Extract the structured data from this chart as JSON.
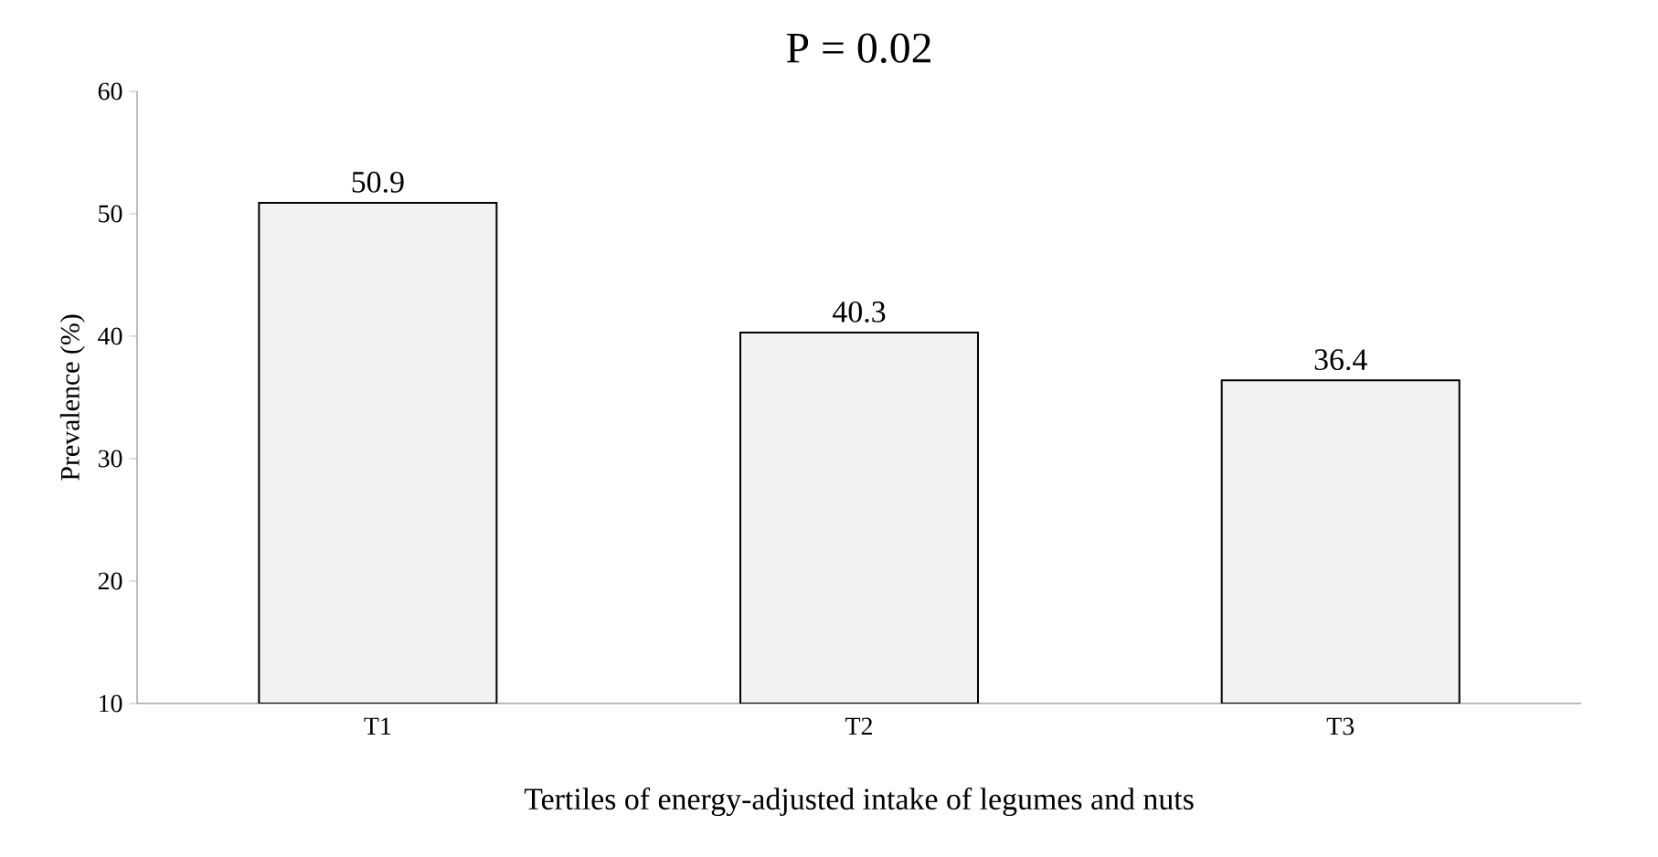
{
  "chart_data": {
    "type": "bar",
    "title": "P = 0.02",
    "xlabel": "Tertiles of energy-adjusted intake of legumes and nuts",
    "ylabel": "Prevalence (%)",
    "categories": [
      "T1",
      "T2",
      "T3"
    ],
    "values": [
      50.9,
      40.3,
      36.4
    ],
    "color": "#f2f2f2",
    "ylim": [
      10,
      60
    ],
    "yticks": [
      10,
      20,
      30,
      40,
      50,
      60
    ],
    "data_labels": true,
    "grid": false
  }
}
